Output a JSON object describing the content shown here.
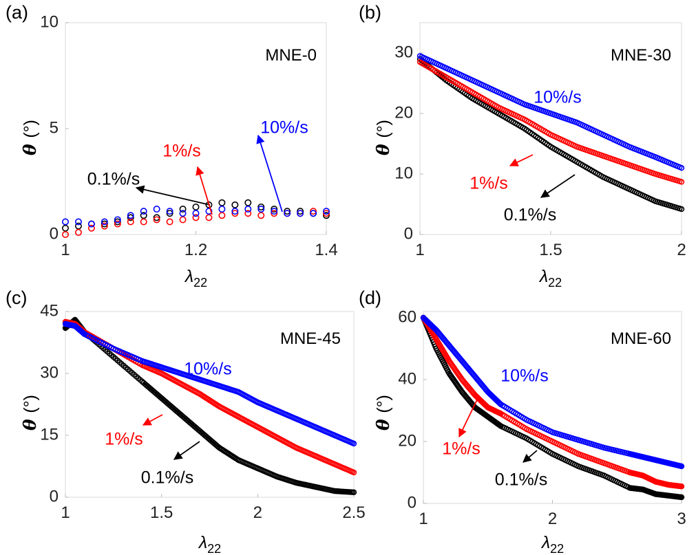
{
  "chart_data": [
    {
      "type": "scatter",
      "panel_label": "(a)",
      "title": "MNE-0",
      "xlabel": "λ22",
      "ylabel": "θ (°)",
      "xlim": [
        1,
        1.4
      ],
      "ylim": [
        0,
        10
      ],
      "xticks": [
        1,
        1.2,
        1.4
      ],
      "xtick_labels": [
        "1",
        "1.2",
        "1.4"
      ],
      "yticks": [
        0,
        5,
        10
      ],
      "ytick_labels": [
        "0",
        "5",
        "10"
      ],
      "grid": false,
      "series": [
        {
          "name": "0.1%/s",
          "color": "#000000",
          "x": [
            1.0,
            1.02,
            1.04,
            1.06,
            1.08,
            1.1,
            1.12,
            1.14,
            1.16,
            1.18,
            1.2,
            1.22,
            1.24,
            1.26,
            1.28,
            1.3,
            1.32,
            1.34,
            1.36,
            1.38,
            1.4
          ],
          "y": [
            0.3,
            0.4,
            0.5,
            0.5,
            0.6,
            0.8,
            0.9,
            0.8,
            1.0,
            1.2,
            1.3,
            1.4,
            1.5,
            1.4,
            1.5,
            1.3,
            1.2,
            1.1,
            1.1,
            1.0,
            0.9
          ]
        },
        {
          "name": "1%/s",
          "color": "#ff0000",
          "x": [
            1.0,
            1.02,
            1.04,
            1.06,
            1.08,
            1.1,
            1.12,
            1.14,
            1.16,
            1.18,
            1.2,
            1.22,
            1.24,
            1.26,
            1.28,
            1.3,
            1.32,
            1.34,
            1.36,
            1.38,
            1.4
          ],
          "y": [
            0.0,
            0.1,
            0.3,
            0.4,
            0.5,
            0.6,
            0.6,
            0.7,
            0.6,
            0.7,
            0.8,
            0.8,
            0.9,
            1.0,
            1.0,
            0.9,
            1.0,
            1.0,
            1.0,
            1.1,
            1.0
          ]
        },
        {
          "name": "10%/s",
          "color": "#0000ff",
          "x": [
            1.0,
            1.02,
            1.04,
            1.06,
            1.08,
            1.1,
            1.12,
            1.14,
            1.16,
            1.18,
            1.2,
            1.22,
            1.24,
            1.26,
            1.28,
            1.3,
            1.32,
            1.34,
            1.36,
            1.38,
            1.4
          ],
          "y": [
            0.6,
            0.6,
            0.5,
            0.6,
            0.7,
            0.9,
            1.1,
            1.2,
            1.1,
            1.0,
            1.0,
            1.1,
            1.2,
            1.1,
            1.2,
            1.2,
            1.1,
            1.0,
            1.0,
            1.0,
            1.1
          ]
        }
      ],
      "annotations": [
        {
          "text": "0.1%/s",
          "color": "#000000"
        },
        {
          "text": "1%/s",
          "color": "#ff0000"
        },
        {
          "text": "10%/s",
          "color": "#0000ff"
        }
      ]
    },
    {
      "type": "scatter",
      "panel_label": "(b)",
      "title": "MNE-30",
      "xlabel": "λ22",
      "ylabel": "θ (°)",
      "xlim": [
        1,
        2
      ],
      "ylim": [
        0,
        35
      ],
      "xticks": [
        1,
        1.5,
        2
      ],
      "xtick_labels": [
        "1",
        "1.5",
        "2"
      ],
      "yticks": [
        0,
        10,
        20,
        30
      ],
      "ytick_labels": [
        "0",
        "10",
        "20",
        "30"
      ],
      "grid": false,
      "series": [
        {
          "name": "0.1%/s",
          "color": "#000000",
          "x": [
            1.0,
            1.1,
            1.2,
            1.3,
            1.4,
            1.5,
            1.6,
            1.7,
            1.8,
            1.9,
            2.0
          ],
          "y": [
            29,
            25.5,
            22.5,
            20,
            17.5,
            14.5,
            12,
            9.5,
            7.5,
            5.5,
            4.2
          ]
        },
        {
          "name": "1%/s",
          "color": "#ff0000",
          "x": [
            1.0,
            1.1,
            1.2,
            1.3,
            1.4,
            1.5,
            1.6,
            1.7,
            1.8,
            1.9,
            2.0
          ],
          "y": [
            28.5,
            26,
            23.5,
            21,
            19,
            16.5,
            14.5,
            13,
            11.5,
            10,
            8.7
          ]
        },
        {
          "name": "10%/s",
          "color": "#0000ff",
          "x": [
            1.0,
            1.1,
            1.2,
            1.3,
            1.4,
            1.5,
            1.6,
            1.7,
            1.8,
            1.9,
            2.0
          ],
          "y": [
            29.5,
            27.5,
            25.5,
            23.5,
            21.5,
            20,
            18.5,
            16.5,
            14.5,
            12.8,
            11
          ]
        }
      ],
      "annotations": [
        {
          "text": "10%/s",
          "color": "#0000ff"
        },
        {
          "text": "1%/s",
          "color": "#ff0000"
        },
        {
          "text": "0.1%/s",
          "color": "#000000"
        }
      ]
    },
    {
      "type": "scatter",
      "panel_label": "(c)",
      "title": "MNE-45",
      "xlabel": "λ22",
      "ylabel": "θ (°)",
      "xlim": [
        1,
        2.5
      ],
      "ylim": [
        0,
        45
      ],
      "xticks": [
        1,
        1.5,
        2,
        2.5
      ],
      "xtick_labels": [
        "1",
        "1.5",
        "2",
        "2.5"
      ],
      "yticks": [
        0,
        15,
        30,
        45
      ],
      "ytick_labels": [
        "0",
        "15",
        "30",
        "45"
      ],
      "grid": false,
      "series": [
        {
          "name": "0.1%/s",
          "color": "#000000",
          "x": [
            1.0,
            1.05,
            1.1,
            1.25,
            1.4,
            1.5,
            1.6,
            1.7,
            1.8,
            1.9,
            2.0,
            2.1,
            2.2,
            2.3,
            2.4,
            2.5
          ],
          "y": [
            41,
            43,
            40,
            34,
            28,
            24,
            20,
            16,
            12,
            9,
            7,
            5,
            3.5,
            2.5,
            1.5,
            1.2
          ]
        },
        {
          "name": "1%/s",
          "color": "#ff0000",
          "x": [
            1.0,
            1.05,
            1.1,
            1.25,
            1.4,
            1.5,
            1.6,
            1.7,
            1.8,
            1.9,
            2.0,
            2.1,
            2.2,
            2.3,
            2.4,
            2.5
          ],
          "y": [
            42.5,
            42,
            40,
            36,
            32,
            30,
            27.5,
            25,
            22,
            19.5,
            17,
            14.5,
            12,
            10,
            8,
            6
          ]
        },
        {
          "name": "10%/s",
          "color": "#0000ff",
          "x": [
            1.0,
            1.05,
            1.1,
            1.25,
            1.4,
            1.5,
            1.6,
            1.7,
            1.8,
            1.9,
            2.0,
            2.1,
            2.2,
            2.3,
            2.4,
            2.5
          ],
          "y": [
            42,
            41.5,
            39.5,
            36,
            33,
            31.5,
            30,
            28.5,
            27,
            25.5,
            23,
            21,
            19,
            17,
            15,
            13
          ]
        }
      ],
      "annotations": [
        {
          "text": "10%/s",
          "color": "#0000ff"
        },
        {
          "text": "1%/s",
          "color": "#ff0000"
        },
        {
          "text": "0.1%/s",
          "color": "#000000"
        }
      ]
    },
    {
      "type": "scatter",
      "panel_label": "(d)",
      "title": "MNE-60",
      "xlabel": "λ22",
      "ylabel": "θ (°)",
      "xlim": [
        1,
        3
      ],
      "ylim": [
        0,
        62
      ],
      "xticks": [
        1,
        2,
        3
      ],
      "xtick_labels": [
        "1",
        "2",
        "3"
      ],
      "yticks": [
        0,
        20,
        40,
        60
      ],
      "ytick_labels": [
        "0",
        "20",
        "40",
        "60"
      ],
      "grid": false,
      "series": [
        {
          "name": "0.1%/s",
          "color": "#000000",
          "x": [
            1.0,
            1.1,
            1.2,
            1.3,
            1.4,
            1.5,
            1.6,
            1.8,
            2.0,
            2.2,
            2.4,
            2.6,
            2.7,
            2.8,
            2.9,
            3.0
          ],
          "y": [
            60,
            50,
            42,
            36,
            31,
            28,
            25,
            21,
            16,
            12,
            9,
            5,
            4.5,
            3,
            2.5,
            2
          ]
        },
        {
          "name": "1%/s",
          "color": "#ff0000",
          "x": [
            1.0,
            1.1,
            1.2,
            1.3,
            1.4,
            1.5,
            1.6,
            1.8,
            2.0,
            2.2,
            2.4,
            2.6,
            2.7,
            2.8,
            2.9,
            3.0
          ],
          "y": [
            60,
            53,
            46,
            40,
            35,
            31,
            29,
            24,
            20,
            16,
            13,
            10,
            9,
            7,
            6,
            5.5
          ]
        },
        {
          "name": "10%/s",
          "color": "#0000ff",
          "x": [
            1.0,
            1.1,
            1.2,
            1.3,
            1.4,
            1.5,
            1.6,
            1.8,
            2.0,
            2.2,
            2.4,
            2.6,
            2.7,
            2.8,
            2.9,
            3.0
          ],
          "y": [
            60,
            56,
            51,
            46,
            41,
            36,
            32,
            27,
            23,
            20.5,
            18,
            16,
            15,
            14,
            13,
            12
          ]
        }
      ],
      "annotations": [
        {
          "text": "10%/s",
          "color": "#0000ff"
        },
        {
          "text": "1%/s",
          "color": "#ff0000"
        },
        {
          "text": "0.1%/s",
          "color": "#000000"
        }
      ]
    }
  ]
}
